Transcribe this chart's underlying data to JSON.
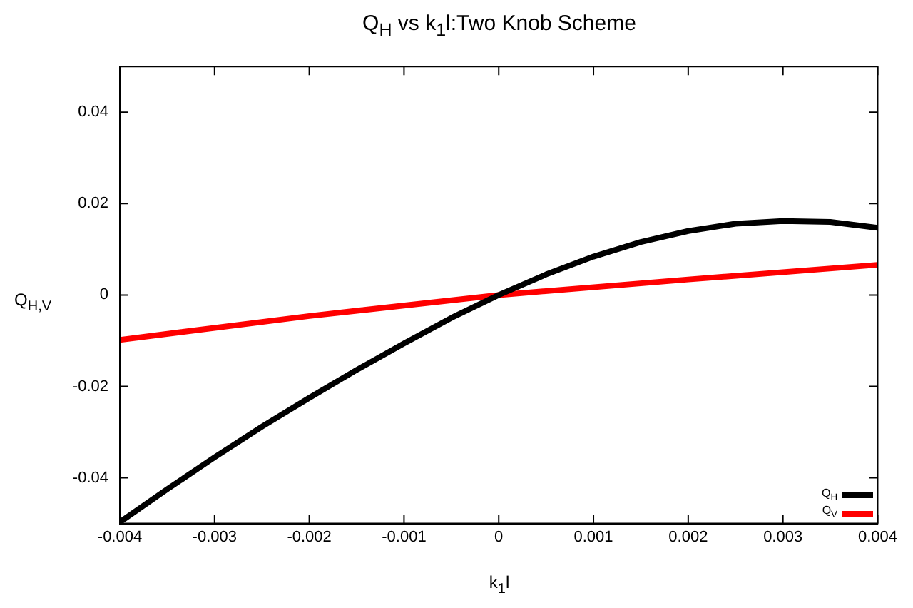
{
  "chart_data": {
    "type": "line",
    "title": "Q$_{H}$ vs k$_{1}$l:Two Knob Scheme",
    "xlabel": "k$_{1}$l",
    "ylabel": "Q$_{H,V}$",
    "xlim": [
      -0.004,
      0.004
    ],
    "xticks": [
      -0.004,
      -0.003,
      -0.002,
      -0.001,
      0,
      0.001,
      0.002,
      0.003,
      0.004
    ],
    "ylim": [
      -0.05,
      0.05
    ],
    "yticks": [
      -0.04,
      -0.02,
      0,
      0.02,
      0.04
    ],
    "grid": false,
    "legend": "bottom right",
    "marker": "none",
    "line_style": "solid",
    "series": [
      {
        "name": "Q$_{H}$",
        "color": "#000000",
        "x": [
          -0.004,
          -0.0035,
          -0.003,
          -0.0025,
          -0.002,
          -0.0015,
          -0.001,
          -0.0005,
          0,
          0.0005,
          0.001,
          0.0015,
          0.002,
          0.0025,
          0.003,
          0.0035,
          0.004
        ],
        "values": [
          -0.0497,
          -0.0425,
          -0.0355,
          -0.0288,
          -0.0225,
          -0.0164,
          -0.0106,
          -0.005,
          0,
          0.0045,
          0.0084,
          0.0116,
          0.014,
          0.0156,
          0.0162,
          0.016,
          0.0147
        ]
      },
      {
        "name": "Q$_{V}$",
        "color": "#ff0000",
        "x": [
          -0.004,
          -0.002,
          0,
          0.002,
          0.004
        ],
        "values": [
          -0.0098,
          -0.0046,
          0,
          0.0034,
          0.0066
        ]
      }
    ]
  }
}
